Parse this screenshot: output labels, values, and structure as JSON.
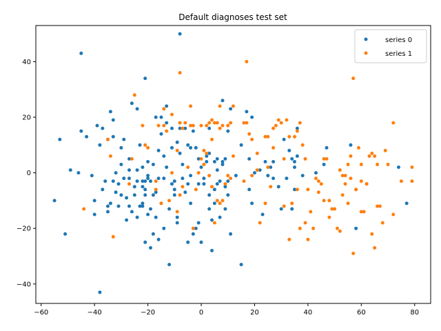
{
  "chart_data": {
    "type": "scatter",
    "title": "Default diagnoses test set",
    "xlabel": "",
    "ylabel": "",
    "xlim": [
      -62,
      86
    ],
    "ylim": [
      -47,
      53
    ],
    "xticks": [
      -60,
      -40,
      -20,
      0,
      20,
      40,
      60,
      80
    ],
    "yticks": [
      -40,
      -20,
      0,
      20,
      40
    ],
    "grid": false,
    "legend": "top-right",
    "series": [
      {
        "name": "series 0",
        "color": "#1f77b4",
        "points": [
          [
            -45,
            43
          ],
          [
            -8,
            50
          ],
          [
            -21,
            34
          ],
          [
            -38,
            -43
          ],
          [
            -53,
            12
          ],
          [
            -55,
            -10
          ],
          [
            -51,
            -22
          ],
          [
            -49,
            1
          ],
          [
            -46,
            0
          ],
          [
            -45,
            15
          ],
          [
            -43,
            13
          ],
          [
            -41,
            -1
          ],
          [
            -40,
            -15
          ],
          [
            -40,
            -10
          ],
          [
            -39,
            17
          ],
          [
            -38,
            10
          ],
          [
            -37,
            16
          ],
          [
            -37,
            -6
          ],
          [
            -36,
            -3
          ],
          [
            -35,
            -14
          ],
          [
            -35,
            -12
          ],
          [
            -35,
            12
          ],
          [
            -34,
            22
          ],
          [
            -34,
            -11
          ],
          [
            -33,
            19
          ],
          [
            -33,
            13
          ],
          [
            -33,
            -3
          ],
          [
            -32,
            -7
          ],
          [
            -32,
            0
          ],
          [
            -31,
            -4
          ],
          [
            -31,
            -12
          ],
          [
            -30,
            -8
          ],
          [
            -30,
            3
          ],
          [
            -30,
            9
          ],
          [
            -29,
            12
          ],
          [
            -29,
            -2
          ],
          [
            -28,
            -17
          ],
          [
            -28,
            -9
          ],
          [
            -27,
            -2
          ],
          [
            -27,
            1
          ],
          [
            -27,
            -12
          ],
          [
            -27,
            5
          ],
          [
            -26,
            25
          ],
          [
            -26,
            -14
          ],
          [
            -25,
            -8
          ],
          [
            -25,
            -5
          ],
          [
            -24,
            23
          ],
          [
            -24,
            -3
          ],
          [
            -24,
            1
          ],
          [
            -24,
            -16
          ],
          [
            -23,
            -12
          ],
          [
            -23,
            10
          ],
          [
            -22,
            -5
          ],
          [
            -22,
            -12
          ],
          [
            -22,
            2
          ],
          [
            -22,
            -3
          ],
          [
            -22,
            -11
          ],
          [
            -21,
            -25
          ],
          [
            -21,
            -6
          ],
          [
            -21,
            -8
          ],
          [
            -21,
            -3
          ],
          [
            -20,
            -15
          ],
          [
            -20,
            -2
          ],
          [
            -20,
            4
          ],
          [
            -20,
            -1
          ],
          [
            -19,
            -3
          ],
          [
            -19,
            -13
          ],
          [
            -19,
            -27
          ],
          [
            -18,
            -22
          ],
          [
            -18,
            -8
          ],
          [
            -18,
            3
          ],
          [
            -17,
            -16
          ],
          [
            -17,
            20
          ],
          [
            -17,
            -7
          ],
          [
            -16,
            -24
          ],
          [
            -16,
            -2
          ],
          [
            -16,
            8
          ],
          [
            -15,
            -11
          ],
          [
            -15,
            20
          ],
          [
            -15,
            14
          ],
          [
            -14,
            -2
          ],
          [
            -14,
            6
          ],
          [
            -14,
            -20
          ],
          [
            -13,
            24
          ],
          [
            -13,
            18
          ],
          [
            -13,
            2
          ],
          [
            -12,
            -33
          ],
          [
            -12,
            -13
          ],
          [
            -11,
            9
          ],
          [
            -11,
            -4
          ],
          [
            -11,
            16
          ],
          [
            -10,
            -8
          ],
          [
            -10,
            -6
          ],
          [
            -10,
            -3
          ],
          [
            -9,
            -16
          ],
          [
            -9,
            11
          ],
          [
            -9,
            -18
          ],
          [
            -8,
            7
          ],
          [
            -8,
            16
          ],
          [
            -7,
            -2
          ],
          [
            -7,
            3
          ],
          [
            -6,
            16
          ],
          [
            -6,
            -7
          ],
          [
            -5,
            -25
          ],
          [
            -5,
            -4
          ],
          [
            -5,
            10
          ],
          [
            -4,
            -11
          ],
          [
            -4,
            -1
          ],
          [
            -4,
            9
          ],
          [
            -3,
            -22
          ],
          [
            -3,
            15
          ],
          [
            -2,
            -20
          ],
          [
            -2,
            9
          ],
          [
            -1,
            -18
          ],
          [
            -1,
            -4
          ],
          [
            -1,
            5
          ],
          [
            0,
            -25
          ],
          [
            0,
            2
          ],
          [
            1,
            -4
          ],
          [
            1,
            -2
          ],
          [
            2,
            4
          ],
          [
            2,
            6
          ],
          [
            3,
            -13
          ],
          [
            3,
            -8
          ],
          [
            3,
            7
          ],
          [
            3,
            16
          ],
          [
            4,
            -28
          ],
          [
            4,
            -17
          ],
          [
            5,
            4
          ],
          [
            5,
            -11
          ],
          [
            5,
            -6
          ],
          [
            6,
            -4
          ],
          [
            6,
            1
          ],
          [
            6,
            5
          ],
          [
            7,
            -16
          ],
          [
            7,
            -3
          ],
          [
            8,
            3
          ],
          [
            8,
            26
          ],
          [
            8,
            4
          ],
          [
            9,
            -13
          ],
          [
            9,
            -5
          ],
          [
            9,
            5
          ],
          [
            10,
            -8
          ],
          [
            10,
            -3
          ],
          [
            10,
            15
          ],
          [
            11,
            -22
          ],
          [
            11,
            23
          ],
          [
            13,
            -1
          ],
          [
            15,
            10
          ],
          [
            15,
            -33
          ],
          [
            17,
            22
          ],
          [
            18,
            -6
          ],
          [
            18,
            5
          ],
          [
            19,
            20
          ],
          [
            19,
            -11
          ],
          [
            20,
            0
          ],
          [
            22,
            1
          ],
          [
            23,
            -15
          ],
          [
            24,
            4
          ],
          [
            25,
            -1
          ],
          [
            26,
            2
          ],
          [
            27,
            4
          ],
          [
            27,
            -2
          ],
          [
            29,
            -5
          ],
          [
            30,
            -13
          ],
          [
            31,
            12
          ],
          [
            32,
            -2
          ],
          [
            33,
            8
          ],
          [
            34,
            -13
          ],
          [
            34,
            5
          ],
          [
            35,
            4
          ],
          [
            35,
            2
          ],
          [
            36,
            6
          ],
          [
            36,
            16
          ],
          [
            38,
            -1
          ],
          [
            43,
            0
          ],
          [
            46,
            3
          ],
          [
            47,
            9
          ],
          [
            56,
            10
          ],
          [
            58,
            -20
          ],
          [
            74,
            2
          ],
          [
            77,
            -11
          ],
          [
            35,
            -6
          ]
        ]
      },
      {
        "name": "series 1",
        "color": "#ff7f0e",
        "points": [
          [
            17,
            40
          ],
          [
            -8,
            36
          ],
          [
            57,
            34
          ],
          [
            -25,
            28
          ],
          [
            -14,
            23
          ],
          [
            -11,
            21
          ],
          [
            7,
            24
          ],
          [
            12,
            24
          ],
          [
            -4,
            24
          ],
          [
            -22,
            17
          ],
          [
            -21,
            10
          ],
          [
            -16,
            17
          ],
          [
            -14,
            17
          ],
          [
            -13,
            15
          ],
          [
            -9,
            8
          ],
          [
            -8,
            18
          ],
          [
            -7,
            16
          ],
          [
            -6,
            18
          ],
          [
            -4,
            17
          ],
          [
            -3,
            17
          ],
          [
            0,
            17
          ],
          [
            2,
            17
          ],
          [
            3,
            18
          ],
          [
            4,
            19
          ],
          [
            5,
            18
          ],
          [
            6,
            18
          ],
          [
            7,
            16
          ],
          [
            8,
            17
          ],
          [
            10,
            17
          ],
          [
            11,
            18
          ],
          [
            16,
            18
          ],
          [
            17,
            18
          ],
          [
            18,
            14
          ],
          [
            19,
            12
          ],
          [
            21,
            7
          ],
          [
            24,
            13
          ],
          [
            25,
            13
          ],
          [
            27,
            16
          ],
          [
            28,
            17
          ],
          [
            29,
            19
          ],
          [
            30,
            18
          ],
          [
            31,
            5
          ],
          [
            32,
            19
          ],
          [
            33,
            13
          ],
          [
            35,
            13
          ],
          [
            36,
            15
          ],
          [
            37,
            18
          ],
          [
            38,
            10
          ],
          [
            39,
            5
          ],
          [
            40,
            -6
          ],
          [
            41,
            -14
          ],
          [
            43,
            -2
          ],
          [
            44,
            -3
          ],
          [
            45,
            -4
          ],
          [
            46,
            5
          ],
          [
            47,
            5
          ],
          [
            48,
            -10
          ],
          [
            49,
            -13
          ],
          [
            51,
            -20
          ],
          [
            52,
            1
          ],
          [
            53,
            -1
          ],
          [
            54,
            -1
          ],
          [
            55,
            3
          ],
          [
            56,
            6
          ],
          [
            57,
            -29
          ],
          [
            58,
            -6
          ],
          [
            59,
            9
          ],
          [
            60,
            3
          ],
          [
            60,
            -3
          ],
          [
            61,
            -14
          ],
          [
            62,
            -4
          ],
          [
            63,
            6
          ],
          [
            64,
            7
          ],
          [
            65,
            6
          ],
          [
            66,
            3
          ],
          [
            66,
            -12
          ],
          [
            68,
            -18
          ],
          [
            69,
            8
          ],
          [
            70,
            3
          ],
          [
            72,
            -15
          ],
          [
            72,
            18
          ],
          [
            75,
            -3
          ],
          [
            79,
            2
          ],
          [
            79,
            -3
          ],
          [
            -33,
            -23
          ],
          [
            -44,
            -13
          ],
          [
            -34,
            6
          ],
          [
            -26,
            5
          ],
          [
            -17,
            -6
          ],
          [
            -15,
            -11
          ],
          [
            -12,
            -10
          ],
          [
            -9,
            -14
          ],
          [
            -8,
            -8
          ],
          [
            -7,
            -5
          ],
          [
            -3,
            -20
          ],
          [
            -1,
            0
          ],
          [
            0,
            5
          ],
          [
            1,
            3
          ],
          [
            2,
            7
          ],
          [
            3,
            -1
          ],
          [
            4,
            -5
          ],
          [
            5,
            -18
          ],
          [
            6,
            -10
          ],
          [
            7,
            -11
          ],
          [
            8,
            -10
          ],
          [
            9,
            -4
          ],
          [
            10,
            -1
          ],
          [
            11,
            -2
          ],
          [
            12,
            6
          ],
          [
            16,
            -3
          ],
          [
            19,
            -1
          ],
          [
            21,
            1
          ],
          [
            22,
            -18
          ],
          [
            24,
            -11
          ],
          [
            25,
            2
          ],
          [
            26,
            -5
          ],
          [
            27,
            9
          ],
          [
            31,
            -12
          ],
          [
            33,
            -24
          ],
          [
            34,
            -11
          ],
          [
            36,
            -6
          ],
          [
            37,
            -20
          ],
          [
            39,
            -18
          ],
          [
            40,
            -24
          ],
          [
            42,
            -20
          ],
          [
            44,
            -7
          ],
          [
            46,
            -10
          ],
          [
            48,
            -16
          ],
          [
            50,
            -13
          ],
          [
            52,
            -21
          ],
          [
            53,
            -8
          ],
          [
            54,
            -4
          ],
          [
            55,
            -11
          ],
          [
            56,
            -2
          ],
          [
            58,
            -6
          ],
          [
            60,
            -14
          ],
          [
            62,
            -4
          ],
          [
            64,
            -22
          ],
          [
            65,
            -27
          ],
          [
            67,
            -12
          ],
          [
            -20,
            9
          ],
          [
            -17,
            -3
          ],
          [
            -11,
            0
          ],
          [
            -5,
            2
          ],
          [
            -2,
            -6
          ],
          [
            1,
            8
          ],
          [
            4,
            12
          ],
          [
            -27,
            -4
          ],
          [
            -35,
            12
          ]
        ]
      }
    ]
  }
}
